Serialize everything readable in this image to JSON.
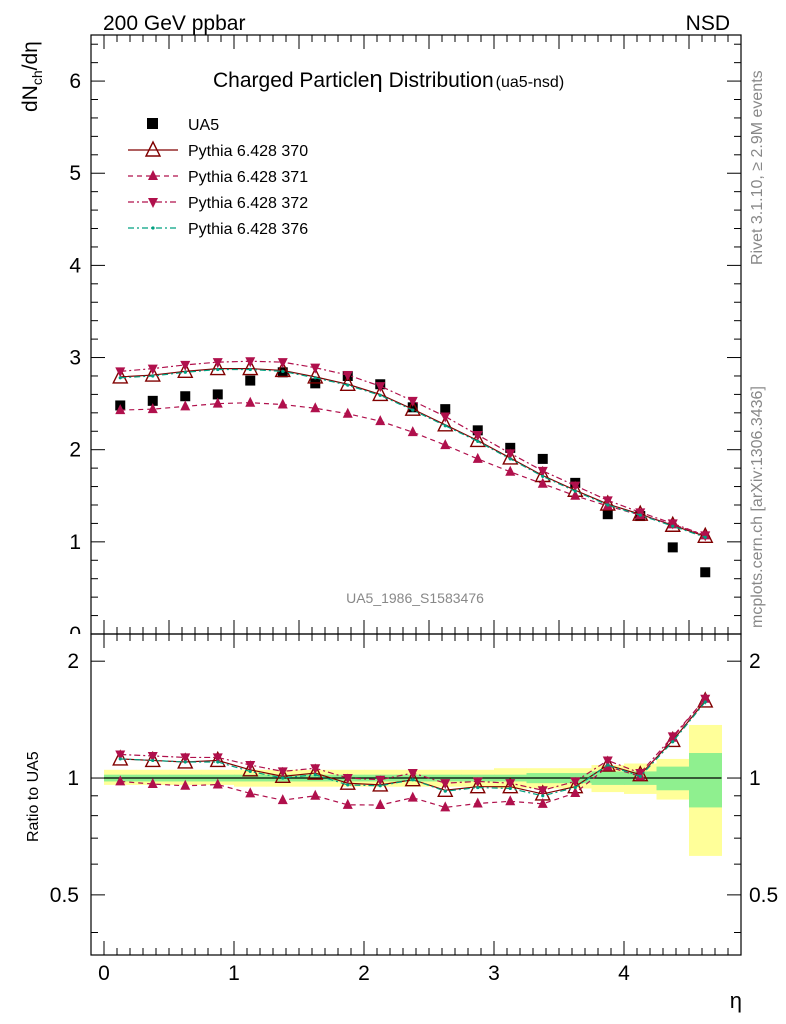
{
  "header": {
    "left": "200 GeV ppbar",
    "right": "NSD"
  },
  "side_labels": {
    "rivet": "Rivet 3.1.10, ≥ 2.9M events",
    "mcplots": "mcplots.cern.ch [arXiv:1306.3436]"
  },
  "chart_data": [
    {
      "type": "scatter",
      "title_main": "Charged Particle",
      "title_eta": "η",
      "title_rest": " Distribution",
      "title_sub": "(ua5-nsd)",
      "ylabel_main": "dN",
      "ylabel_sub": "ch",
      "ylabel_tail": "/dη",
      "xlabel": "",
      "watermark": "UA5_1986_S1583476",
      "xlim": [
        -0.1,
        4.9
      ],
      "ylim": [
        0,
        6.5
      ],
      "yticks": [
        "1",
        "2",
        "3",
        "4",
        "5",
        "6"
      ],
      "x": [
        0.125,
        0.375,
        0.625,
        0.875,
        1.125,
        1.375,
        1.625,
        1.875,
        2.125,
        2.375,
        2.625,
        2.875,
        3.125,
        3.375,
        3.625,
        3.875,
        4.125,
        4.375,
        4.625
      ],
      "series": [
        {
          "name": "UA5",
          "marker": "square",
          "color": "#000000",
          "values": [
            2.48,
            2.53,
            2.58,
            2.6,
            2.75,
            2.84,
            2.72,
            2.8,
            2.71,
            2.46,
            2.44,
            2.21,
            2.02,
            1.9,
            1.64,
            1.3,
            1.28,
            0.94,
            0.67
          ]
        },
        {
          "name": "Pythia 6.428 370",
          "marker": "triangle-up-open",
          "color": "#800000",
          "dash": "",
          "values": [
            2.79,
            2.81,
            2.85,
            2.88,
            2.88,
            2.86,
            2.79,
            2.71,
            2.6,
            2.44,
            2.27,
            2.1,
            1.91,
            1.72,
            1.56,
            1.41,
            1.3,
            1.18,
            1.06
          ]
        },
        {
          "name": "Pythia 6.428 371",
          "marker": "triangle-up",
          "color": "#b0104c",
          "dash": "5,4",
          "values": [
            2.43,
            2.44,
            2.47,
            2.5,
            2.51,
            2.49,
            2.45,
            2.39,
            2.31,
            2.19,
            2.05,
            1.9,
            1.76,
            1.63,
            1.5,
            1.39,
            1.29,
            1.19,
            1.07
          ]
        },
        {
          "name": "Pythia 6.428 372",
          "marker": "triangle-down",
          "color": "#b0104c",
          "dash": "6,3,2,3",
          "values": [
            2.85,
            2.88,
            2.92,
            2.95,
            2.96,
            2.95,
            2.89,
            2.81,
            2.69,
            2.53,
            2.36,
            2.16,
            1.96,
            1.77,
            1.61,
            1.45,
            1.32,
            1.2,
            1.07
          ]
        },
        {
          "name": "Pythia 6.428 376",
          "marker": "dot",
          "color": "#00a080",
          "dash": "6,3,2,3",
          "values": [
            2.78,
            2.8,
            2.84,
            2.87,
            2.87,
            2.85,
            2.78,
            2.7,
            2.59,
            2.43,
            2.26,
            2.09,
            1.9,
            1.71,
            1.55,
            1.4,
            1.29,
            1.17,
            1.05
          ]
        }
      ]
    },
    {
      "type": "scatter",
      "title": "",
      "xlabel": "η",
      "ylabel": "Ratio to UA5",
      "xlim": [
        -0.1,
        4.9
      ],
      "ylim": [
        0.35,
        2.35
      ],
      "xticks": [
        "0",
        "1",
        "2",
        "3",
        "4"
      ],
      "yticks": [
        "0.5",
        "1",
        "2"
      ],
      "x": [
        0.125,
        0.375,
        0.625,
        0.875,
        1.125,
        1.375,
        1.625,
        1.875,
        2.125,
        2.375,
        2.625,
        2.875,
        3.125,
        3.375,
        3.625,
        3.875,
        4.125,
        4.375,
        4.625
      ],
      "band_yellow": [
        [
          0.96,
          1.05
        ],
        [
          0.96,
          1.05
        ],
        [
          0.96,
          1.05
        ],
        [
          0.96,
          1.05
        ],
        [
          0.95,
          1.05
        ],
        [
          0.95,
          1.05
        ],
        [
          0.95,
          1.05
        ],
        [
          0.95,
          1.05
        ],
        [
          0.95,
          1.05
        ],
        [
          0.95,
          1.05
        ],
        [
          0.95,
          1.05
        ],
        [
          0.95,
          1.05
        ],
        [
          0.94,
          1.06
        ],
        [
          0.94,
          1.06
        ],
        [
          0.94,
          1.06
        ],
        [
          0.92,
          1.08
        ],
        [
          0.91,
          1.09
        ],
        [
          0.88,
          1.12
        ],
        [
          0.63,
          1.37
        ]
      ],
      "band_green": [
        [
          0.98,
          1.02
        ],
        [
          0.98,
          1.02
        ],
        [
          0.98,
          1.02
        ],
        [
          0.98,
          1.02
        ],
        [
          0.98,
          1.02
        ],
        [
          0.98,
          1.02
        ],
        [
          0.98,
          1.02
        ],
        [
          0.98,
          1.02
        ],
        [
          0.98,
          1.02
        ],
        [
          0.98,
          1.02
        ],
        [
          0.98,
          1.02
        ],
        [
          0.98,
          1.02
        ],
        [
          0.98,
          1.02
        ],
        [
          0.97,
          1.03
        ],
        [
          0.97,
          1.03
        ],
        [
          0.96,
          1.04
        ],
        [
          0.96,
          1.04
        ],
        [
          0.93,
          1.07
        ],
        [
          0.84,
          1.16
        ]
      ],
      "series": [
        {
          "name": "Pythia 6.428 370",
          "marker": "triangle-up-open",
          "color": "#800000",
          "dash": "",
          "values": [
            1.12,
            1.11,
            1.1,
            1.11,
            1.05,
            1.01,
            1.03,
            0.97,
            0.96,
            0.99,
            0.93,
            0.95,
            0.95,
            0.91,
            0.95,
            1.08,
            1.02,
            1.25,
            1.58
          ]
        },
        {
          "name": "Pythia 6.428 371",
          "marker": "triangle-up",
          "color": "#b0104c",
          "dash": "5,4",
          "values": [
            0.98,
            0.965,
            0.955,
            0.962,
            0.913,
            0.877,
            0.9,
            0.853,
            0.852,
            0.89,
            0.84,
            0.86,
            0.871,
            0.858,
            0.915,
            1.07,
            1.01,
            1.27,
            1.6
          ]
        },
        {
          "name": "Pythia 6.428 372",
          "marker": "triangle-down",
          "color": "#b0104c",
          "dash": "6,3,2,3",
          "values": [
            1.15,
            1.14,
            1.13,
            1.13,
            1.08,
            1.04,
            1.06,
            1.0,
            0.99,
            1.03,
            0.97,
            0.98,
            0.97,
            0.93,
            0.98,
            1.11,
            1.03,
            1.28,
            1.6
          ]
        },
        {
          "name": "Pythia 6.428 376",
          "marker": "dot",
          "color": "#00a080",
          "dash": "6,3,2,3",
          "values": [
            1.12,
            1.11,
            1.1,
            1.1,
            1.04,
            1.0,
            1.02,
            0.96,
            0.955,
            0.99,
            0.925,
            0.945,
            0.94,
            0.9,
            0.945,
            1.08,
            1.01,
            1.24,
            1.57
          ]
        }
      ]
    }
  ]
}
